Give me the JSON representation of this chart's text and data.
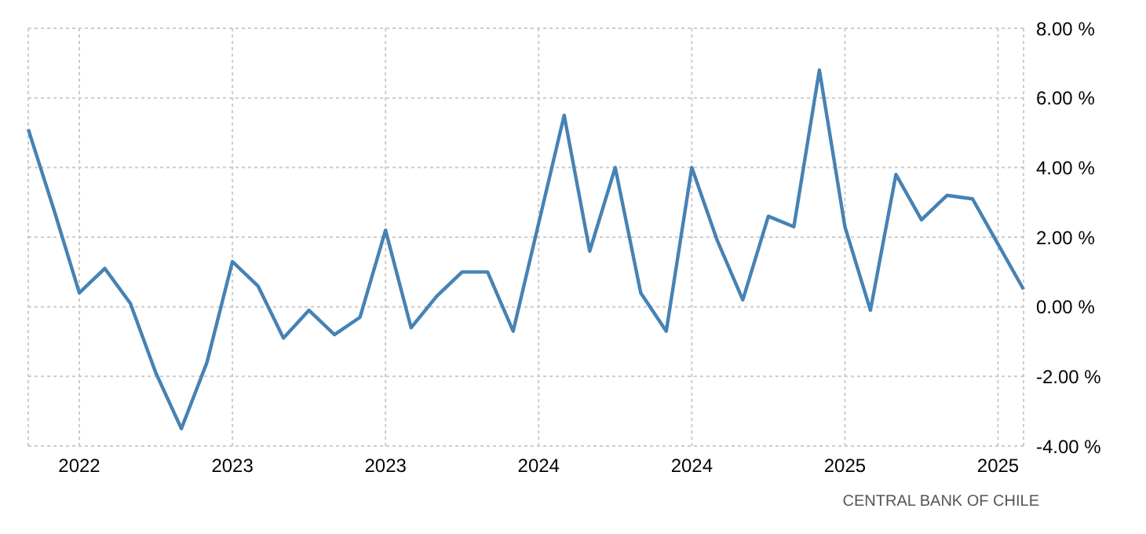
{
  "chart_data": {
    "type": "line",
    "categories": [
      null,
      null,
      "2022",
      null,
      null,
      null,
      null,
      null,
      "2023",
      null,
      null,
      null,
      null,
      null,
      "2023",
      null,
      null,
      null,
      null,
      null,
      "2024",
      null,
      null,
      null,
      null,
      null,
      "2024",
      null,
      null,
      null,
      null,
      null,
      "2025",
      null,
      null,
      null,
      null,
      null,
      "2025",
      null
    ],
    "series": [
      {
        "color": "#4682b4",
        "values": [
          5.1,
          2.8,
          0.4,
          1.1,
          0.1,
          -1.9,
          -3.5,
          -1.6,
          1.3,
          0.6,
          -0.9,
          -0.1,
          -0.8,
          -0.3,
          2.2,
          -0.6,
          0.3,
          1.0,
          1.0,
          -0.7,
          2.4,
          5.5,
          1.6,
          4.0,
          0.4,
          -0.7,
          4.0,
          1.9,
          0.2,
          2.6,
          2.3,
          6.8,
          2.3,
          -0.1,
          3.8,
          2.5,
          3.2,
          3.1,
          1.8,
          0.5
        ]
      }
    ],
    "ylim": [
      -4,
      8
    ],
    "yticks": [
      {
        "value": -4,
        "label": "-4.00 %"
      },
      {
        "value": -2,
        "label": "-2.00 %"
      },
      {
        "value": 0,
        "label": "0.00 %"
      },
      {
        "value": 2,
        "label": "2.00 %"
      },
      {
        "value": 4,
        "label": "4.00 %"
      },
      {
        "value": 6,
        "label": "6.00 %"
      },
      {
        "value": 8,
        "label": "8.00 %"
      }
    ],
    "grid": true,
    "annotations": [
      "CENTRAL BANK OF CHILE"
    ]
  }
}
